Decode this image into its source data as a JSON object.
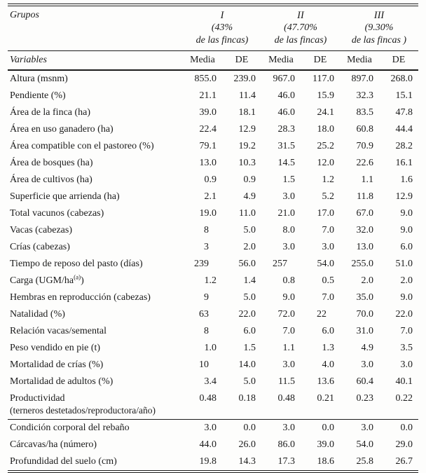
{
  "table": {
    "corner_label": "Grupos",
    "variables_label": "Variables",
    "groups": [
      {
        "numeral": "I",
        "line2": "(43%",
        "line3": "de las fincas)"
      },
      {
        "numeral": "II",
        "line2": "(47.70%",
        "line3": "de las fincas)"
      },
      {
        "numeral": "III",
        "line2": "(9.30%",
        "line3": "de las fincas )"
      }
    ],
    "stat_headers": [
      "Media",
      "DE",
      "Media",
      "DE",
      "Media",
      "DE"
    ],
    "rows": [
      {
        "label": "Altura (msnm)",
        "values": [
          "855.0",
          "239.0",
          "967.0",
          "117.0",
          "897.0",
          "268.0"
        ]
      },
      {
        "label": "Pendiente (%)",
        "values": [
          "21.1",
          "11.4",
          "46.0",
          "15.9",
          "32.3",
          "15.1"
        ]
      },
      {
        "label": "Área de la finca (ha)",
        "values": [
          "39.0",
          "18.1",
          "46.0",
          "24.1",
          "83.5",
          "47.8"
        ]
      },
      {
        "label": "Área en uso ganadero (ha)",
        "values": [
          "22.4",
          "12.9",
          "28.3",
          "18.0",
          "60.8",
          "44.4"
        ]
      },
      {
        "label": "Área compatible con el pastoreo (%)",
        "values": [
          "79.1",
          "19.2",
          "31.5",
          "25.2",
          "70.9",
          "28.2"
        ]
      },
      {
        "label": "Área de bosques (ha)",
        "values": [
          "13.0",
          "10.3",
          "14.5",
          "12.0",
          "22.6",
          "16.1"
        ]
      },
      {
        "label": "Área de cultivos (ha)",
        "values": [
          "0.9",
          "0.9",
          "1.5",
          "1.2",
          "1.1",
          "1.6"
        ]
      },
      {
        "label": "Superficie que arrienda (ha)",
        "values": [
          "2.1",
          "4.9",
          "3.0",
          "5.2",
          "11.8",
          "12.9"
        ]
      },
      {
        "label": "Total vacunos (cabezas)",
        "values": [
          "19.0",
          "11.0",
          "21.0",
          "17.0",
          "67.0",
          "9.0"
        ]
      },
      {
        "label": "Vacas (cabezas)",
        "values": [
          "8",
          "5.0",
          "8.0",
          "7.0",
          "32.0",
          "9.0"
        ]
      },
      {
        "label": "Crías (cabezas)",
        "values": [
          "3",
          "2.0",
          "3.0",
          "3.0",
          "13.0",
          "6.0"
        ]
      },
      {
        "label": "Tiempo de reposo del pasto (días)",
        "values": [
          "239",
          "56.0",
          "257",
          "54.0",
          "255.0",
          "51.0"
        ]
      },
      {
        "label": "Carga (UGM/ha",
        "label_sup": "(a)",
        "label_after": ")",
        "values": [
          "1.2",
          "1.4",
          "0.8",
          "0.5",
          "2.0",
          "2.0"
        ]
      },
      {
        "label": "Hembras en reproducción (cabezas)",
        "values": [
          "9",
          "5.0",
          "9.0",
          "7.0",
          "35.0",
          "9.0"
        ]
      },
      {
        "label": "Natalidad (%)",
        "values": [
          "63",
          "22.0",
          "72.0",
          "22",
          "70.0",
          "22.0"
        ]
      },
      {
        "label": "Relación vacas/semental",
        "values": [
          "8",
          "6.0",
          "7.0",
          "6.0",
          "31.0",
          "7.0"
        ]
      },
      {
        "label": "Peso vendido en pie (t)",
        "values": [
          "1.0",
          "1.5",
          "1.1",
          "1.3",
          "4.9",
          "3.5"
        ]
      },
      {
        "label": "Mortalidad de crías (%)",
        "values": [
          "10",
          "14.0",
          "3.0",
          "4.0",
          "3.0",
          "3.0"
        ]
      },
      {
        "label": "Mortalidad de adultos (%)",
        "values": [
          "3.4",
          "5.0",
          "11.5",
          "13.6",
          "60.4",
          "40.1"
        ]
      },
      {
        "label": "Productividad",
        "label_line2": "(terneros destetados/reproductora/año)",
        "values": [
          "0.48",
          "0.18",
          "0.48",
          "0.21",
          "0.23",
          "0.22"
        ]
      },
      {
        "label": "Condición corporal del rebaño",
        "rule_above": true,
        "values": [
          "3.0",
          "0.0",
          "3.0",
          "0.0",
          "3.0",
          "0.0"
        ]
      },
      {
        "label": "Cárcavas/ha (número)",
        "values": [
          "44.0",
          "26.0",
          "86.0",
          "39.0",
          "54.0",
          "29.0"
        ]
      },
      {
        "label": "Profundidad del suelo (cm)",
        "values": [
          "19.8",
          "14.3",
          "17.3",
          "18.6",
          "25.8",
          "26.7"
        ]
      }
    ]
  }
}
